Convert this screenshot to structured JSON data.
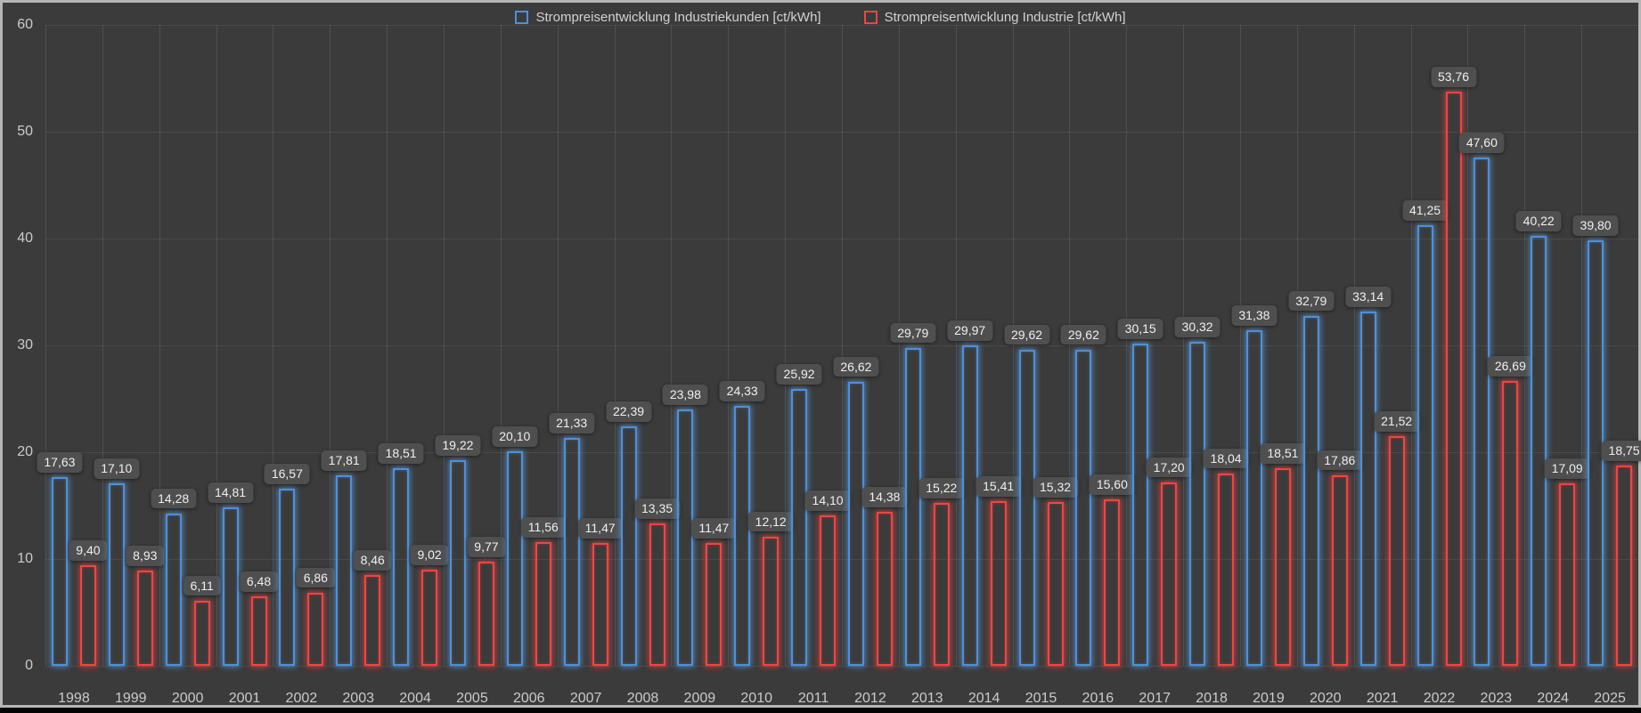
{
  "chart_data": {
    "type": "bar",
    "title": "",
    "categories": [
      "1998",
      "1999",
      "2000",
      "2001",
      "2002",
      "2003",
      "2004",
      "2005",
      "2006",
      "2007",
      "2008",
      "2009",
      "2010",
      "2011",
      "2012",
      "2013",
      "2014",
      "2015",
      "2016",
      "2017",
      "2018",
      "2019",
      "2020",
      "2021",
      "2022",
      "2023",
      "2024",
      "2025"
    ],
    "series": [
      {
        "name": "Strompreisentwicklung Industriekunden [ct/kWh]",
        "color": "#4f8fd8",
        "values": [
          17.63,
          17.1,
          14.28,
          14.81,
          16.57,
          17.81,
          18.51,
          19.22,
          20.1,
          21.33,
          22.39,
          23.98,
          24.33,
          25.92,
          26.62,
          29.79,
          29.97,
          29.62,
          29.62,
          30.15,
          30.32,
          31.38,
          32.79,
          33.14,
          41.25,
          47.6,
          40.22,
          39.8
        ]
      },
      {
        "name": "Strompreisentwicklung Industrie [ct/kWh]",
        "color": "#ef4444",
        "values": [
          9.4,
          8.93,
          6.11,
          6.48,
          6.86,
          8.46,
          9.02,
          9.77,
          11.56,
          11.47,
          13.35,
          11.47,
          12.12,
          14.1,
          14.38,
          15.22,
          15.41,
          15.32,
          15.6,
          17.2,
          18.04,
          18.51,
          17.86,
          21.52,
          53.76,
          26.69,
          17.09,
          18.75
        ]
      }
    ],
    "ylim": [
      0,
      60
    ],
    "yticks": [
      0,
      10,
      20,
      30,
      40,
      50,
      60
    ],
    "grid": true,
    "legend_position": "top-center",
    "value_labels": true,
    "decimal_separator": ",",
    "background_color": "#3b3b3b",
    "label_pill_color": "#4f4f4f",
    "axis_text_color": "#cbcbcb"
  }
}
